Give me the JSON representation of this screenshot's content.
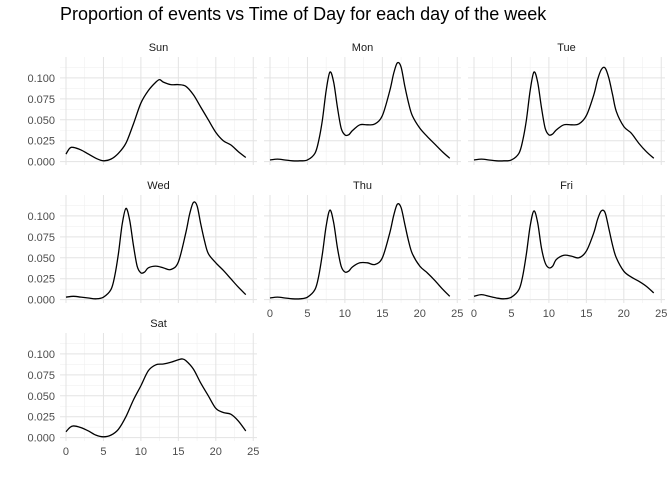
{
  "chart_data": {
    "type": "line",
    "title": "Proportion of events vs Time of Day for each day of the week",
    "xlabel": "",
    "ylabel": "",
    "xlim": [
      0,
      24
    ],
    "ylim": [
      0,
      0.12
    ],
    "x_ticks": [
      "0",
      "5",
      "10",
      "15",
      "20",
      "25"
    ],
    "y_ticks": [
      "0.000",
      "0.025",
      "0.050",
      "0.075",
      "0.100"
    ],
    "grid": true,
    "line_color": "#000000",
    "panels": [
      {
        "name": "Sun",
        "x": [
          0,
          0.5,
          1,
          2,
          3,
          4,
          5,
          6,
          7,
          8,
          9,
          10,
          11,
          12,
          12.5,
          13,
          14,
          15,
          16,
          17,
          18,
          19,
          20,
          21,
          22,
          23,
          24
        ],
        "values": [
          0.009,
          0.016,
          0.017,
          0.014,
          0.009,
          0.004,
          0.001,
          0.003,
          0.01,
          0.022,
          0.045,
          0.07,
          0.085,
          0.095,
          0.098,
          0.095,
          0.092,
          0.092,
          0.09,
          0.08,
          0.065,
          0.05,
          0.035,
          0.025,
          0.02,
          0.012,
          0.005
        ]
      },
      {
        "name": "Mon",
        "x": [
          0,
          1,
          2,
          3,
          4,
          5,
          6,
          6.5,
          7,
          7.5,
          8,
          8.5,
          9,
          9.5,
          10,
          10.5,
          11,
          12,
          13,
          14,
          15,
          16,
          16.5,
          17,
          17.5,
          18,
          18.5,
          19,
          20,
          21,
          22,
          23,
          24
        ],
        "values": [
          0.002,
          0.003,
          0.002,
          0.001,
          0.001,
          0.002,
          0.01,
          0.025,
          0.05,
          0.085,
          0.107,
          0.095,
          0.065,
          0.04,
          0.032,
          0.032,
          0.037,
          0.044,
          0.044,
          0.045,
          0.055,
          0.085,
          0.105,
          0.118,
          0.113,
          0.09,
          0.07,
          0.055,
          0.04,
          0.03,
          0.021,
          0.012,
          0.004
        ]
      },
      {
        "name": "Tue",
        "x": [
          0,
          1,
          2,
          3,
          4,
          5,
          6,
          6.5,
          7,
          7.5,
          8,
          8.5,
          9,
          9.5,
          10,
          10.5,
          11,
          12,
          13,
          14,
          15,
          16,
          16.5,
          17,
          17.5,
          18,
          18.5,
          19,
          20,
          21,
          22,
          23,
          24
        ],
        "values": [
          0.002,
          0.003,
          0.002,
          0.001,
          0.001,
          0.002,
          0.01,
          0.025,
          0.05,
          0.085,
          0.107,
          0.095,
          0.065,
          0.04,
          0.032,
          0.033,
          0.038,
          0.044,
          0.044,
          0.045,
          0.055,
          0.08,
          0.098,
          0.11,
          0.112,
          0.1,
          0.08,
          0.06,
          0.042,
          0.034,
          0.022,
          0.012,
          0.004
        ]
      },
      {
        "name": "Wed",
        "x": [
          0,
          1,
          2,
          3,
          4,
          5,
          6,
          6.5,
          7,
          7.5,
          8,
          8.5,
          9,
          9.5,
          10,
          10.5,
          11,
          12,
          13,
          14,
          15,
          16,
          16.5,
          17,
          17.5,
          18,
          18.5,
          19,
          20,
          21,
          22,
          23,
          24
        ],
        "values": [
          0.003,
          0.004,
          0.003,
          0.002,
          0.001,
          0.003,
          0.012,
          0.028,
          0.055,
          0.09,
          0.109,
          0.095,
          0.065,
          0.04,
          0.032,
          0.033,
          0.038,
          0.04,
          0.038,
          0.036,
          0.045,
          0.08,
          0.102,
          0.116,
          0.112,
          0.09,
          0.07,
          0.055,
          0.044,
          0.035,
          0.025,
          0.015,
          0.006
        ]
      },
      {
        "name": "Thu",
        "x": [
          0,
          1,
          2,
          3,
          4,
          5,
          6,
          6.5,
          7,
          7.5,
          8,
          8.5,
          9,
          9.5,
          10,
          10.5,
          11,
          12,
          13,
          14,
          15,
          16,
          16.5,
          17,
          17.5,
          18,
          18.5,
          19,
          20,
          21,
          22,
          23,
          24
        ],
        "values": [
          0.002,
          0.003,
          0.002,
          0.001,
          0.001,
          0.003,
          0.012,
          0.028,
          0.055,
          0.088,
          0.107,
          0.092,
          0.062,
          0.04,
          0.033,
          0.034,
          0.039,
          0.044,
          0.044,
          0.042,
          0.05,
          0.08,
          0.1,
          0.114,
          0.11,
          0.09,
          0.07,
          0.055,
          0.04,
          0.032,
          0.023,
          0.013,
          0.004
        ]
      },
      {
        "name": "Fri",
        "x": [
          0,
          1,
          2,
          3,
          4,
          5,
          6,
          6.5,
          7,
          7.5,
          8,
          8.5,
          9,
          9.5,
          10,
          10.5,
          11,
          12,
          13,
          14,
          15,
          16,
          16.5,
          17,
          17.5,
          18,
          18.5,
          19,
          20,
          21,
          22,
          23,
          24
        ],
        "values": [
          0.004,
          0.006,
          0.004,
          0.002,
          0.001,
          0.003,
          0.012,
          0.028,
          0.055,
          0.088,
          0.106,
          0.092,
          0.062,
          0.044,
          0.038,
          0.04,
          0.048,
          0.053,
          0.052,
          0.05,
          0.058,
          0.08,
          0.096,
          0.106,
          0.104,
          0.085,
          0.065,
          0.05,
          0.034,
          0.027,
          0.022,
          0.016,
          0.008
        ]
      },
      {
        "name": "Sat",
        "x": [
          0,
          0.5,
          1,
          2,
          3,
          4,
          5,
          6,
          7,
          8,
          9,
          10,
          11,
          12,
          13,
          14,
          15,
          15.5,
          16,
          17,
          18,
          19,
          20,
          21,
          22,
          23,
          24
        ],
        "values": [
          0.007,
          0.012,
          0.014,
          0.012,
          0.008,
          0.003,
          0.001,
          0.003,
          0.01,
          0.025,
          0.045,
          0.062,
          0.08,
          0.087,
          0.088,
          0.09,
          0.093,
          0.094,
          0.092,
          0.082,
          0.065,
          0.05,
          0.035,
          0.03,
          0.028,
          0.02,
          0.008
        ]
      }
    ]
  }
}
